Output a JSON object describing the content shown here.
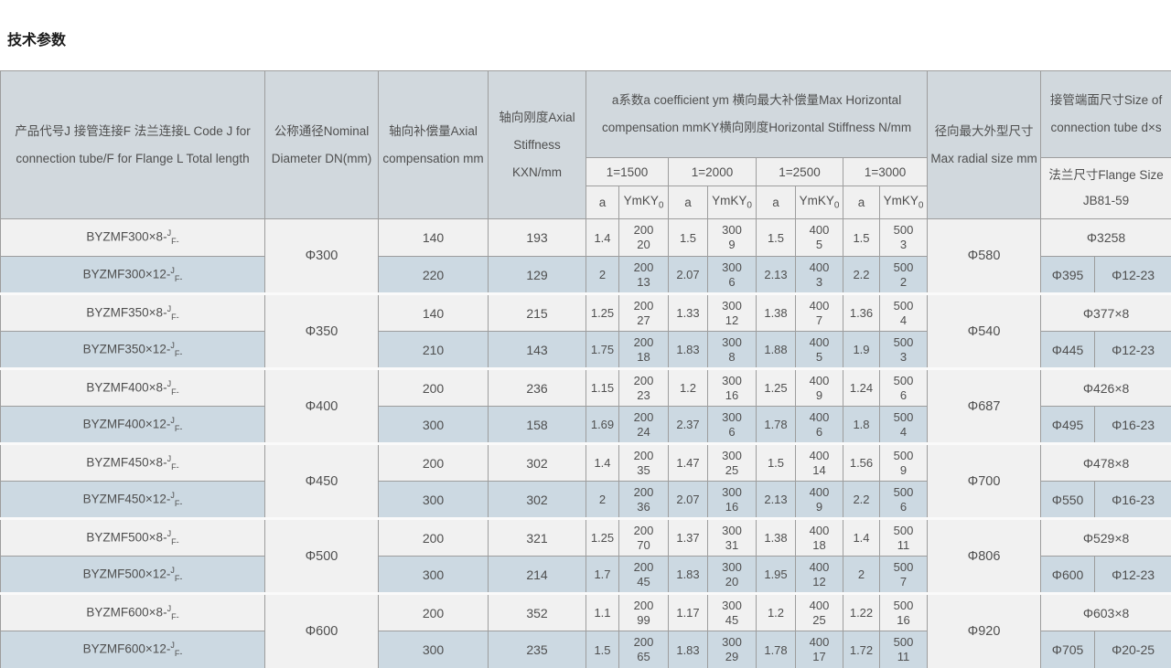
{
  "page_title": "技术参数",
  "colors": {
    "header_bg": "#d1d8dd",
    "subheader_bg": "#f0f0f0",
    "row_light_bg": "#f1f1f1",
    "row_blue_bg": "#ccd9e2",
    "merged_cell_bg": "#f0f0f0",
    "border": "#9d9d9d",
    "text": "#4f4f4f"
  },
  "table": {
    "header": {
      "col_product": "产品代号J 接管连接F 法兰连接L Code J for connection tube/F for Flange L Total length",
      "col_dn": "公称通径Nominal Diameter DN(mm)",
      "col_axial_comp": "轴向补偿量Axial compensation mm",
      "col_axial_stiff": "轴向刚度Axial Stiffness KXN/mm",
      "col_horizontal_group": "a系数a coefficient ym 横向最大补偿量Max Horizontal compensation mmKY横向刚度Horizontal Stiffness N/mm",
      "length_groups": [
        "1=1500",
        "1=2000",
        "1=2500",
        "1=3000"
      ],
      "sub_a": "a",
      "sub_ym_main": "YmKY",
      "sub_ym_sub": "0",
      "col_radial": "径向最大外型尺寸 Max radial size mm",
      "col_tube_size": "接管端面尺寸Size of connection tube d×s",
      "col_flange_size": "法兰尺寸Flange Size JB81-59"
    },
    "groups": [
      {
        "dn": "Φ300",
        "radial": "Φ580",
        "tube_end": "Φ3258",
        "flange_d": "Φ395",
        "flange_holes": "Φ12-23",
        "rows": [
          {
            "code": "BYZMF300×8-",
            "code_sup": "J",
            "code_sub": "F-",
            "axial_compensation": "140",
            "axial_stiffness": "193",
            "horizontal": [
              {
                "a": "1.4",
                "ym": "200",
                "ky": "20"
              },
              {
                "a": "1.5",
                "ym": "300",
                "ky": "9"
              },
              {
                "a": "1.5",
                "ym": "400",
                "ky": "5"
              },
              {
                "a": "1.5",
                "ym": "500",
                "ky": "3"
              }
            ]
          },
          {
            "code": "BYZMF300×12-",
            "code_sup": "J",
            "code_sub": "F-",
            "axial_compensation": "220",
            "axial_stiffness": "129",
            "horizontal": [
              {
                "a": "2",
                "ym": "200",
                "ky": "13"
              },
              {
                "a": "2.07",
                "ym": "300",
                "ky": "6"
              },
              {
                "a": "2.13",
                "ym": "400",
                "ky": "3"
              },
              {
                "a": "2.2",
                "ym": "500",
                "ky": "2"
              }
            ]
          }
        ]
      },
      {
        "dn": "Φ350",
        "radial": "Φ540",
        "tube_end": "Φ377×8",
        "flange_d": "Φ445",
        "flange_holes": "Φ12-23",
        "rows": [
          {
            "code": "BYZMF350×8-",
            "code_sup": "J",
            "code_sub": "F-",
            "axial_compensation": "140",
            "axial_stiffness": "215",
            "horizontal": [
              {
                "a": "1.25",
                "ym": "200",
                "ky": "27"
              },
              {
                "a": "1.33",
                "ym": "300",
                "ky": "12"
              },
              {
                "a": "1.38",
                "ym": "400",
                "ky": "7"
              },
              {
                "a": "1.36",
                "ym": "500",
                "ky": "4"
              }
            ]
          },
          {
            "code": "BYZMF350×12-",
            "code_sup": "J",
            "code_sub": "F-",
            "axial_compensation": "210",
            "axial_stiffness": "143",
            "horizontal": [
              {
                "a": "1.75",
                "ym": "200",
                "ky": "18"
              },
              {
                "a": "1.83",
                "ym": "300",
                "ky": "8"
              },
              {
                "a": "1.88",
                "ym": "400",
                "ky": "5"
              },
              {
                "a": "1.9",
                "ym": "500",
                "ky": "3"
              }
            ]
          }
        ]
      },
      {
        "dn": "Φ400",
        "radial": "Φ687",
        "tube_end": "Φ426×8",
        "flange_d": "Φ495",
        "flange_holes": "Φ16-23",
        "rows": [
          {
            "code": "BYZMF400×8-",
            "code_sup": "J",
            "code_sub": "F-",
            "axial_compensation": "200",
            "axial_stiffness": "236",
            "horizontal": [
              {
                "a": "1.15",
                "ym": "200",
                "ky": "23"
              },
              {
                "a": "1.2",
                "ym": "300",
                "ky": "16"
              },
              {
                "a": "1.25",
                "ym": "400",
                "ky": "9"
              },
              {
                "a": "1.24",
                "ym": "500",
                "ky": "6"
              }
            ]
          },
          {
            "code": "BYZMF400×12-",
            "code_sup": "J",
            "code_sub": "F-",
            "axial_compensation": "300",
            "axial_stiffness": "158",
            "horizontal": [
              {
                "a": "1.69",
                "ym": "200",
                "ky": "24"
              },
              {
                "a": "2.37",
                "ym": "300",
                "ky": "6"
              },
              {
                "a": "1.78",
                "ym": "400",
                "ky": "6"
              },
              {
                "a": "1.8",
                "ym": "500",
                "ky": "4"
              }
            ]
          }
        ]
      },
      {
        "dn": "Φ450",
        "radial": "Φ700",
        "tube_end": "Φ478×8",
        "flange_d": "Φ550",
        "flange_holes": "Φ16-23",
        "rows": [
          {
            "code": "BYZMF450×8-",
            "code_sup": "J",
            "code_sub": "F-",
            "axial_compensation": "200",
            "axial_stiffness": "302",
            "horizontal": [
              {
                "a": "1.4",
                "ym": "200",
                "ky": "35"
              },
              {
                "a": "1.47",
                "ym": "300",
                "ky": "25"
              },
              {
                "a": "1.5",
                "ym": "400",
                "ky": "14"
              },
              {
                "a": "1.56",
                "ym": "500",
                "ky": "9"
              }
            ]
          },
          {
            "code": "BYZMF450×12-",
            "code_sup": "J",
            "code_sub": "F-",
            "axial_compensation": "300",
            "axial_stiffness": "302",
            "horizontal": [
              {
                "a": "2",
                "ym": "200",
                "ky": "36"
              },
              {
                "a": "2.07",
                "ym": "300",
                "ky": "16"
              },
              {
                "a": "2.13",
                "ym": "400",
                "ky": "9"
              },
              {
                "a": "2.2",
                "ym": "500",
                "ky": "6"
              }
            ]
          }
        ]
      },
      {
        "dn": "Φ500",
        "radial": "Φ806",
        "tube_end": "Φ529×8",
        "flange_d": "Φ600",
        "flange_holes": "Φ12-23",
        "rows": [
          {
            "code": "BYZMF500×8-",
            "code_sup": "J",
            "code_sub": "F-",
            "axial_compensation": "200",
            "axial_stiffness": "321",
            "horizontal": [
              {
                "a": "1.25",
                "ym": "200",
                "ky": "70"
              },
              {
                "a": "1.37",
                "ym": "300",
                "ky": "31"
              },
              {
                "a": "1.38",
                "ym": "400",
                "ky": "18"
              },
              {
                "a": "1.4",
                "ym": "500",
                "ky": "11"
              }
            ]
          },
          {
            "code": "BYZMF500×12-",
            "code_sup": "J",
            "code_sub": "F-",
            "axial_compensation": "300",
            "axial_stiffness": "214",
            "horizontal": [
              {
                "a": "1.7",
                "ym": "200",
                "ky": "45"
              },
              {
                "a": "1.83",
                "ym": "300",
                "ky": "20"
              },
              {
                "a": "1.95",
                "ym": "400",
                "ky": "12"
              },
              {
                "a": "2",
                "ym": "500",
                "ky": "7"
              }
            ]
          }
        ]
      },
      {
        "dn": "Φ600",
        "radial": "Φ920",
        "tube_end": "Φ603×8",
        "flange_d": "Φ705",
        "flange_holes": "Φ20-25",
        "rows": [
          {
            "code": "BYZMF600×8-",
            "code_sup": "J",
            "code_sub": "F-",
            "axial_compensation": "200",
            "axial_stiffness": "352",
            "horizontal": [
              {
                "a": "1.1",
                "ym": "200",
                "ky": "99"
              },
              {
                "a": "1.17",
                "ym": "300",
                "ky": "45"
              },
              {
                "a": "1.2",
                "ym": "400",
                "ky": "25"
              },
              {
                "a": "1.22",
                "ym": "500",
                "ky": "16"
              }
            ]
          },
          {
            "code": "BYZMF600×12-",
            "code_sup": "J",
            "code_sub": "F-",
            "axial_compensation": "300",
            "axial_stiffness": "235",
            "horizontal": [
              {
                "a": "1.5",
                "ym": "200",
                "ky": "65"
              },
              {
                "a": "1.83",
                "ym": "300",
                "ky": "29"
              },
              {
                "a": "1.78",
                "ym": "400",
                "ky": "17"
              },
              {
                "a": "1.72",
                "ym": "500",
                "ky": "11"
              }
            ]
          }
        ]
      }
    ]
  }
}
